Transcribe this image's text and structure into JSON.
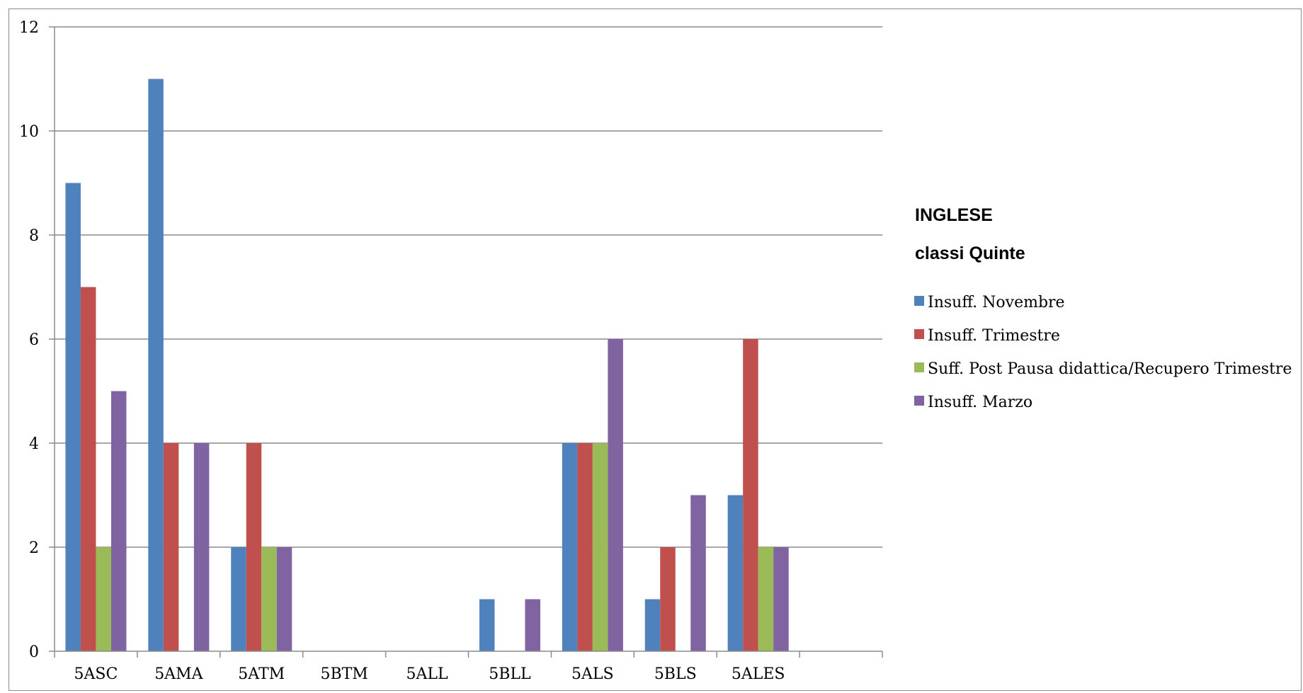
{
  "chart_data": {
    "type": "bar",
    "title": "INGLESE",
    "subtitle": "classi Quinte",
    "categories": [
      "5ASC",
      "5AMA",
      "5ATM",
      "5BTM",
      "5ALL",
      "5BLL",
      "5ALS",
      "5BLS",
      "5ALES"
    ],
    "series": [
      {
        "name": "Insuff. Novembre",
        "color": "#4f81bd",
        "values": [
          9,
          11,
          2,
          0,
          0,
          1,
          4,
          1,
          3
        ]
      },
      {
        "name": "Insuff. Trimestre",
        "color": "#c0504d",
        "values": [
          7,
          4,
          4,
          0,
          0,
          0,
          4,
          2,
          6
        ]
      },
      {
        "name": "Suff. Post Pausa didattica/Recupero Trimestre",
        "color": "#9bbb59",
        "values": [
          2,
          0,
          2,
          0,
          0,
          0,
          4,
          0,
          2
        ]
      },
      {
        "name": "Insuff. Marzo",
        "color": "#8064a2",
        "values": [
          5,
          4,
          2,
          0,
          0,
          1,
          6,
          3,
          2
        ]
      }
    ],
    "yticks": [
      0,
      2,
      4,
      6,
      8,
      10,
      12
    ],
    "ylim": [
      0,
      12
    ],
    "grid": true,
    "legend": "right"
  }
}
